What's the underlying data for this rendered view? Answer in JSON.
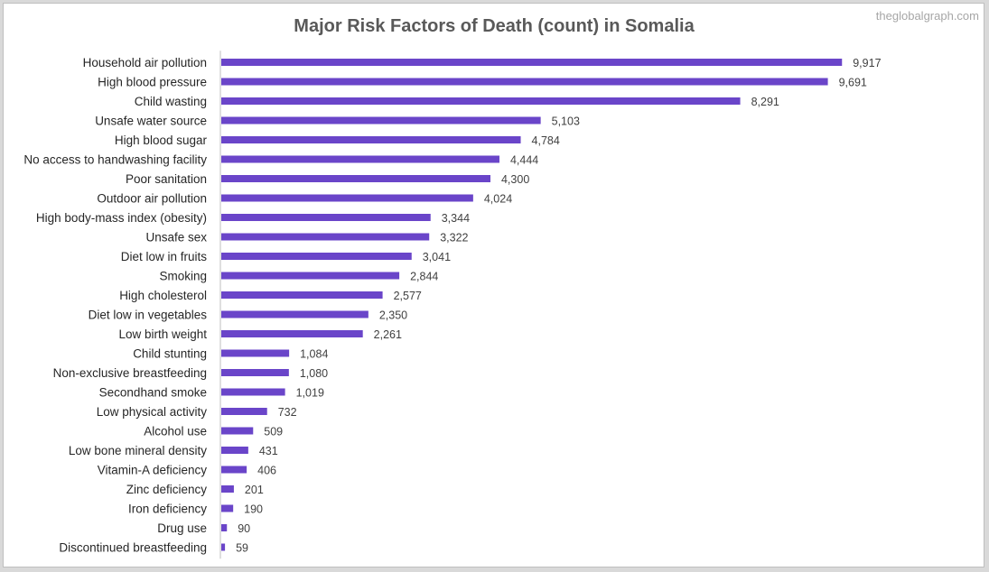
{
  "watermark": "theglobalgraph.com",
  "colors": {
    "bar": "#6a45c9",
    "axis": "#bfbfbf",
    "background": "#ffffff"
  },
  "chart_data": {
    "type": "bar",
    "orientation": "horizontal",
    "title": "Major Risk Factors of Death (count) in Somalia",
    "xlabel": "",
    "ylabel": "",
    "grid": false,
    "legend": "none",
    "xlim": [
      0,
      10000
    ],
    "categories": [
      "Household air pollution",
      "High blood pressure",
      "Child wasting",
      "Unsafe water source",
      "High blood sugar",
      "No access to handwashing facility",
      "Poor sanitation",
      "Outdoor air pollution",
      "High body-mass index (obesity)",
      "Unsafe sex",
      "Diet low in fruits",
      "Smoking",
      "High cholesterol",
      "Diet low in vegetables",
      "Low birth weight",
      "Child stunting",
      "Non-exclusive breastfeeding",
      "Secondhand smoke",
      "Low physical activity",
      "Alcohol use",
      "Low bone mineral density",
      "Vitamin-A deficiency",
      "Zinc deficiency",
      "Iron deficiency",
      "Drug use",
      "Discontinued breastfeeding"
    ],
    "values": [
      9917,
      9691,
      8291,
      5103,
      4784,
      4444,
      4300,
      4024,
      3344,
      3322,
      3041,
      2844,
      2577,
      2350,
      2261,
      1084,
      1080,
      1019,
      732,
      509,
      431,
      406,
      201,
      190,
      90,
      59
    ],
    "value_labels": [
      "9,917",
      "9,691",
      "8,291",
      "5,103",
      "4,784",
      "4,444",
      "4,300",
      "4,024",
      "3,344",
      "3,322",
      "3,041",
      "2,844",
      "2,577",
      "2,350",
      "2,261",
      "1,084",
      "1,080",
      "1,019",
      "732",
      "509",
      "431",
      "406",
      "201",
      "190",
      "90",
      "59"
    ]
  }
}
